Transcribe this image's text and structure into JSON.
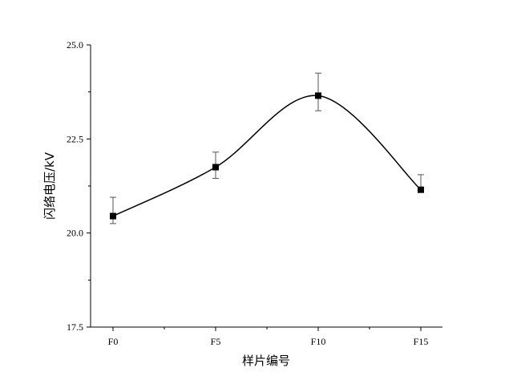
{
  "chart_data": {
    "type": "line",
    "title": "",
    "xlabel": "样片编号",
    "ylabel": "闪络电压/kV",
    "categories": [
      "F0",
      "F5",
      "F10",
      "F15"
    ],
    "series": [
      {
        "values": [
          20.45,
          21.75,
          23.65,
          21.15
        ],
        "error_low": [
          20.25,
          21.45,
          23.25,
          21.08
        ],
        "error_high": [
          20.95,
          22.15,
          24.25,
          21.55
        ]
      }
    ],
    "ylim": [
      17.5,
      25.0
    ],
    "yticks": [
      "17.5",
      "20.0",
      "22.5",
      "25.0"
    ],
    "grid": false,
    "legend": "none",
    "smooth": true,
    "marker": "square",
    "line_color": "#000000"
  }
}
